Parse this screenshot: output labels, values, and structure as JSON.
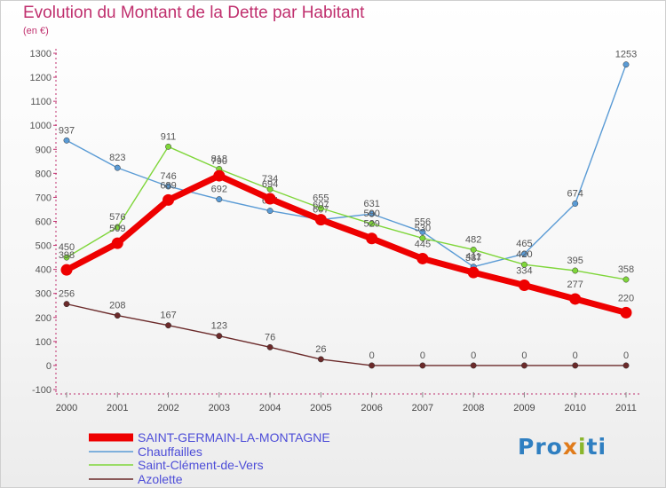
{
  "title": "Evolution du Montant de la Dette par Habitant",
  "subtitle": "(en €)",
  "logo": {
    "text": "Proxiti",
    "letters": [
      "P",
      "r",
      "o",
      "x",
      "i",
      "t",
      "i"
    ],
    "colors": [
      "#2f7fc1",
      "#2f7fc1",
      "#2f7fc1",
      "#e07b1a",
      "#8ab62c",
      "#2f7fc1",
      "#2f7fc1"
    ]
  },
  "chart_data": {
    "type": "line",
    "x": [
      "2000",
      "2001",
      "2002",
      "2003",
      "2004",
      "2005",
      "2006",
      "2007",
      "2008",
      "2009",
      "2010",
      "2011"
    ],
    "ylim": [
      -100,
      1300
    ],
    "yticks": [
      -100,
      0,
      100,
      200,
      300,
      400,
      500,
      600,
      700,
      800,
      900,
      1000,
      1100,
      1200,
      1300
    ],
    "grid": false,
    "legend_position": "bottom-left",
    "series": [
      {
        "name": "SAINT-GERMAIN-LA-MONTAGNE",
        "color": "#ee0000",
        "values": [
          398,
          509,
          689,
          790,
          694,
          607,
          529,
          445,
          387,
          334,
          277,
          220
        ]
      },
      {
        "name": "Chauffailles",
        "color": "#5a9bd5",
        "values": [
          937,
          823,
          746,
          692,
          644,
          607,
          631,
          556,
          411,
          465,
          674,
          1253
        ]
      },
      {
        "name": "Saint-Clément-de-Vers",
        "color": "#7fd63a",
        "values": [
          450,
          576,
          911,
          818,
          734,
          655,
          590,
          530,
          482,
          420,
          395,
          358
        ]
      },
      {
        "name": "Azolette",
        "color": "#6b2a2a",
        "values": [
          256,
          208,
          167,
          123,
          76,
          26,
          0,
          0,
          0,
          0,
          0,
          0
        ]
      }
    ]
  }
}
